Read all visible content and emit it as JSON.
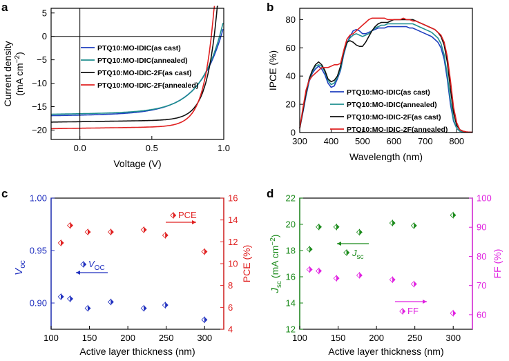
{
  "chart_data": [
    {
      "panel": "a",
      "type": "line",
      "xlabel": "Voltage (V)",
      "ylabel_line1": "Current density",
      "ylabel_line2": "(mA cm",
      "ylabel_sup": "−2",
      "ylabel_close": ")",
      "xlim": [
        -0.2,
        1.0
      ],
      "ylim": [
        -22,
        6
      ],
      "xticks": [
        {
          "v": 0,
          "label": "0.0"
        },
        {
          "v": 0.5,
          "label": "0.5"
        },
        {
          "v": 1.0,
          "label": "1.0"
        }
      ],
      "yticks": [
        {
          "v": 5,
          "label": "5"
        },
        {
          "v": 0,
          "label": "0"
        },
        {
          "v": -5,
          "label": "−5"
        },
        {
          "v": -10,
          "label": "−10"
        },
        {
          "v": -15,
          "label": "−15"
        },
        {
          "v": -20,
          "label": "−20"
        }
      ],
      "series": [
        {
          "name": "PTQ10:MO-IDIC(as cast)",
          "color": "#1f3fbf",
          "jsc": -16.9,
          "voc": 0.985,
          "n": 3.2,
          "dv": 0.165
        },
        {
          "name": "PTQ10:MO-IDIC(annealed)",
          "color": "#1f8f8f",
          "jsc": -16.6,
          "voc": 0.975,
          "n": 3.0,
          "dv": 0.15
        },
        {
          "name": "PTQ10:MO-IDIC-2F(as cast)",
          "color": "#111111",
          "jsc": -18.3,
          "voc": 0.935,
          "n": 5.0,
          "dv": 0.072
        },
        {
          "name": "PTQ10:MO-IDIC-2F(annealed)",
          "color": "#e02020",
          "jsc": -19.7,
          "voc": 0.915,
          "n": 5.0,
          "dv": 0.07
        }
      ]
    },
    {
      "panel": "b",
      "type": "line",
      "xlabel": "Wavelength (nm)",
      "ylabel": "IPCE (%)",
      "xlim": [
        300,
        850
      ],
      "ylim": [
        0,
        88
      ],
      "xticks": [
        300,
        400,
        500,
        600,
        700,
        800
      ],
      "yticks": [
        0,
        20,
        40,
        60,
        80
      ],
      "series": [
        {
          "name": "PTQ10:MO-IDIC(as cast)",
          "color": "#1f3fbf",
          "x": [
            300,
            310,
            320,
            330,
            340,
            350,
            360,
            370,
            380,
            390,
            400,
            410,
            420,
            430,
            440,
            450,
            460,
            470,
            480,
            490,
            500,
            510,
            520,
            530,
            540,
            550,
            560,
            570,
            580,
            590,
            600,
            610,
            620,
            630,
            640,
            650,
            660,
            670,
            680,
            690,
            700,
            710,
            720,
            730,
            740,
            750,
            760,
            770,
            780,
            790,
            800,
            810,
            820,
            830,
            840,
            850
          ],
          "y": [
            3,
            14,
            26,
            36,
            42,
            45,
            47,
            45,
            41,
            35,
            32,
            33,
            38,
            44,
            55,
            63,
            68,
            72,
            73,
            72,
            70,
            70,
            71,
            72,
            73,
            74,
            74,
            74,
            75,
            75,
            75,
            75,
            75,
            75,
            75,
            74,
            74,
            73,
            72,
            71,
            70,
            69,
            68,
            66,
            64,
            60,
            52,
            38,
            20,
            8,
            3,
            1,
            0.5,
            0.3,
            0.2,
            0.1
          ]
        },
        {
          "name": "PTQ10:MO-IDIC(annealed)",
          "color": "#1f8f8f",
          "x": [
            300,
            310,
            320,
            330,
            340,
            350,
            360,
            370,
            380,
            390,
            400,
            410,
            420,
            430,
            440,
            450,
            460,
            470,
            480,
            490,
            500,
            510,
            520,
            530,
            540,
            550,
            560,
            570,
            580,
            590,
            600,
            610,
            620,
            630,
            640,
            650,
            660,
            670,
            680,
            690,
            700,
            710,
            720,
            730,
            740,
            750,
            760,
            770,
            780,
            790,
            800,
            810,
            820,
            830,
            840,
            850
          ],
          "y": [
            3,
            15,
            27,
            37,
            43,
            47,
            48,
            47,
            43,
            37,
            34,
            35,
            39,
            45,
            56,
            63,
            67,
            69,
            70,
            69,
            68,
            69,
            70,
            72,
            74,
            75,
            76,
            76,
            77,
            77,
            77,
            77,
            77,
            77,
            77,
            77,
            77,
            76,
            75,
            74,
            73,
            72,
            71,
            69,
            67,
            63,
            55,
            41,
            23,
            9,
            3,
            1,
            0.5,
            0.3,
            0.2,
            0.1
          ]
        },
        {
          "name": "PTQ10:MO-IDIC-2F(as cast)",
          "color": "#111111",
          "x": [
            300,
            310,
            320,
            330,
            340,
            350,
            360,
            370,
            380,
            390,
            400,
            410,
            420,
            430,
            440,
            450,
            460,
            470,
            480,
            490,
            500,
            510,
            520,
            530,
            540,
            550,
            560,
            570,
            580,
            590,
            600,
            610,
            620,
            630,
            640,
            650,
            660,
            670,
            680,
            690,
            700,
            710,
            720,
            730,
            740,
            750,
            760,
            770,
            780,
            790,
            800,
            810,
            820,
            830,
            840,
            850
          ],
          "y": [
            3,
            15,
            28,
            38,
            44,
            48,
            50,
            48,
            44,
            38,
            36,
            37,
            40,
            47,
            57,
            64,
            65,
            64,
            62,
            61,
            61,
            64,
            68,
            72,
            75,
            77,
            78,
            78,
            78,
            79,
            80,
            80,
            80,
            80,
            80,
            80,
            80,
            79,
            78,
            77,
            76,
            75,
            74,
            73,
            71,
            68,
            62,
            50,
            31,
            14,
            5,
            2,
            1,
            0.5,
            0.3,
            0.2
          ]
        },
        {
          "name": "PTQ10:MO-IDIC-2F(annealed)",
          "color": "#e02020",
          "x": [
            300,
            310,
            320,
            330,
            340,
            350,
            360,
            370,
            380,
            390,
            400,
            410,
            420,
            430,
            440,
            450,
            460,
            470,
            480,
            490,
            500,
            510,
            520,
            530,
            540,
            550,
            560,
            570,
            580,
            590,
            600,
            610,
            620,
            630,
            640,
            650,
            660,
            670,
            680,
            690,
            700,
            710,
            720,
            730,
            740,
            750,
            760,
            770,
            780,
            790,
            800,
            810,
            820,
            830,
            840,
            850
          ],
          "y": [
            3,
            17,
            30,
            37,
            40,
            42,
            44,
            46,
            46,
            46,
            47,
            48,
            48,
            49,
            58,
            66,
            69,
            70,
            72,
            74,
            76,
            78,
            80,
            81,
            81,
            81,
            81,
            81,
            80,
            80,
            80,
            80,
            80,
            81,
            80,
            80,
            79,
            79,
            78,
            77,
            76,
            75,
            74,
            73,
            71,
            69,
            64,
            54,
            37,
            18,
            7,
            2,
            1,
            0.5,
            0.3,
            0.2
          ]
        }
      ]
    },
    {
      "panel": "c",
      "type": "scatter",
      "xlabel": "Active layer thickness (nm)",
      "ylabel_left_main": "V",
      "ylabel_left_sub": "oc",
      "ylabel_right": "PCE (%)",
      "xlim": [
        100,
        325
      ],
      "ylim_left": [
        0.875,
        1.0
      ],
      "ylim_right": [
        4,
        16
      ],
      "xticks": [
        100,
        150,
        200,
        250,
        300
      ],
      "yticks_left": [
        {
          "v": 0.9,
          "label": "0.90"
        },
        {
          "v": 0.95,
          "label": "0.95"
        },
        {
          "v": 1.0,
          "label": "1.00"
        }
      ],
      "yticks_right": [
        4,
        6,
        8,
        10,
        12,
        14,
        16
      ],
      "legend_voc_main": "V",
      "legend_voc_sub": "OC",
      "legend_pce": "PCE",
      "left_color": "#1f2fbf",
      "right_color": "#e02020",
      "thickness": [
        113,
        125,
        148,
        178,
        221,
        249,
        300
      ],
      "voc": [
        0.906,
        0.904,
        0.895,
        0.901,
        0.895,
        0.898,
        0.884
      ],
      "pce": [
        11.9,
        13.5,
        12.9,
        12.9,
        13.1,
        12.6,
        11.1
      ]
    },
    {
      "panel": "d",
      "type": "scatter",
      "xlabel": "Active layer thickness (nm)",
      "ylabel_left_main": "J",
      "ylabel_left_sub": "sc",
      "ylabel_left_unit": " (mA cm",
      "ylabel_left_sup": "−2",
      "ylabel_left_close": ")",
      "ylabel_right": "FF (%)",
      "xlim": [
        100,
        325
      ],
      "ylim_left": [
        12,
        22
      ],
      "ylim_right": [
        55,
        100
      ],
      "xticks": [
        100,
        150,
        200,
        250,
        300
      ],
      "yticks_left": [
        12,
        14,
        16,
        18,
        20,
        22
      ],
      "yticks_right": [
        60,
        70,
        80,
        90,
        100
      ],
      "legend_jsc_main": "J",
      "legend_jsc_sub": "sc",
      "legend_ff": "FF",
      "left_color": "#1a8a1a",
      "right_color": "#e020e0",
      "thickness": [
        113,
        125,
        148,
        178,
        221,
        249,
        300
      ],
      "jsc": [
        18.1,
        19.8,
        19.8,
        19.4,
        20.1,
        19.9,
        20.7
      ],
      "ff": [
        75.5,
        75.0,
        72.5,
        73.5,
        72.0,
        70.5,
        60.5
      ]
    }
  ],
  "labels": {
    "a": "a",
    "b": "b",
    "c": "c",
    "d": "d"
  }
}
